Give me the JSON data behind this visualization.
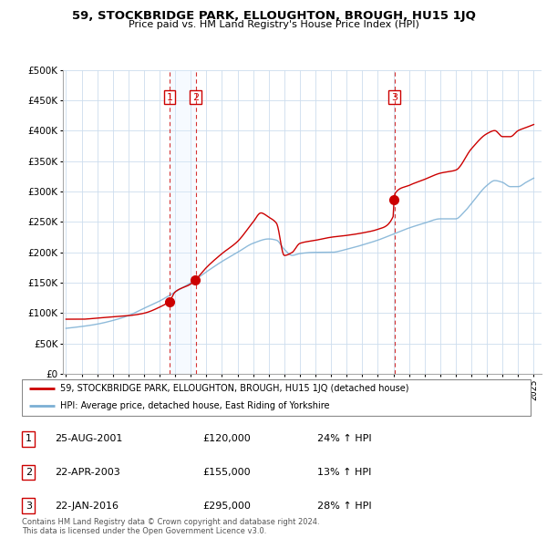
{
  "title": "59, STOCKBRIDGE PARK, ELLOUGHTON, BROUGH, HU15 1JQ",
  "subtitle": "Price paid vs. HM Land Registry's House Price Index (HPI)",
  "legend_line1": "59, STOCKBRIDGE PARK, ELLOUGHTON, BROUGH, HU15 1JQ (detached house)",
  "legend_line2": "HPI: Average price, detached house, East Riding of Yorkshire",
  "footer1": "Contains HM Land Registry data © Crown copyright and database right 2024.",
  "footer2": "This data is licensed under the Open Government Licence v3.0.",
  "sales": [
    {
      "num": 1,
      "date": "25-AUG-2001",
      "price": "£120,000",
      "pct": "24%",
      "dir": "↑",
      "year": 2001.64
    },
    {
      "num": 2,
      "date": "22-APR-2003",
      "price": "£155,000",
      "pct": "13%",
      "dir": "↑",
      "year": 2003.31
    },
    {
      "num": 3,
      "date": "22-JAN-2016",
      "price": "£295,000",
      "pct": "28%",
      "dir": "↑",
      "year": 2016.06
    }
  ],
  "red_color": "#cc0000",
  "blue_color": "#7bafd4",
  "shade_color": "#ddeeff",
  "ylim": [
    0,
    500000
  ],
  "xlim": [
    1994.8,
    2025.5
  ],
  "yticks": [
    0,
    50000,
    100000,
    150000,
    200000,
    250000,
    300000,
    350000,
    400000,
    450000,
    500000
  ],
  "xticks": [
    1995,
    1996,
    1997,
    1998,
    1999,
    2000,
    2001,
    2002,
    2003,
    2004,
    2005,
    2006,
    2007,
    2008,
    2009,
    2010,
    2011,
    2012,
    2013,
    2014,
    2015,
    2016,
    2017,
    2018,
    2019,
    2020,
    2021,
    2022,
    2023,
    2024,
    2025
  ]
}
